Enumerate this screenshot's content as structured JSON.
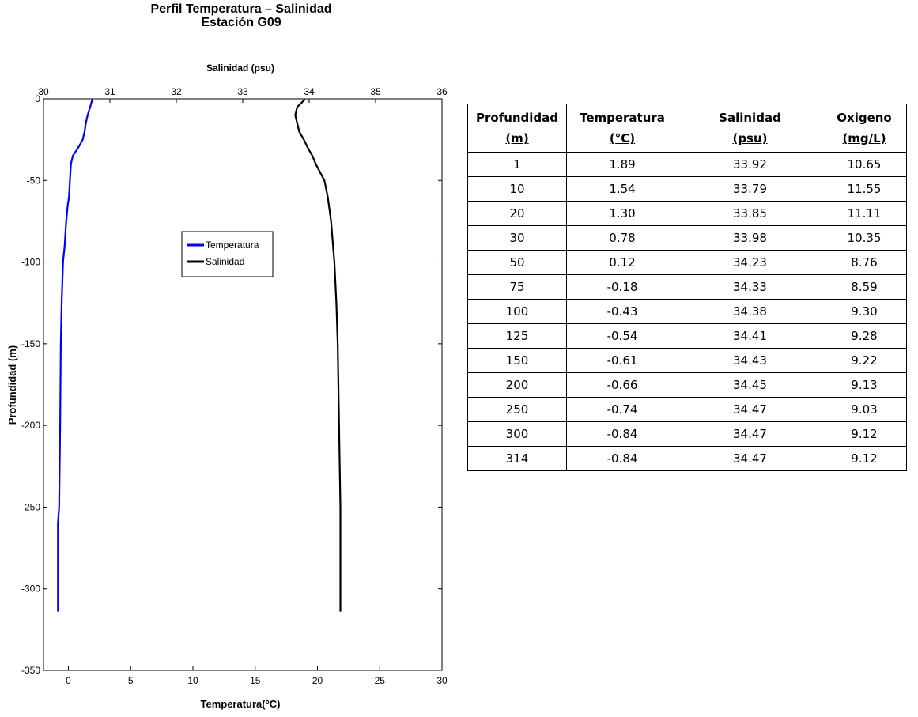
{
  "chart_data": {
    "type": "line",
    "title": [
      "Perfil Temperatura – Salinidad",
      "Estación G09"
    ],
    "ylabel": "Profundidad (m)",
    "xlabel_bottom": "Temperatura(°C)",
    "xlabel_top": "Salinidad (psu)",
    "ylim": [
      -350,
      0
    ],
    "xlim_bottom": [
      -2,
      30
    ],
    "xlim_top": [
      30,
      36
    ],
    "yticks": [
      0,
      -50,
      -100,
      -150,
      -200,
      -250,
      -300,
      -350
    ],
    "xticks_bottom": [
      0,
      5,
      10,
      15,
      20,
      25,
      30
    ],
    "xticks_top": [
      30,
      31,
      32,
      33,
      34,
      35,
      36
    ],
    "legend": {
      "position": "center-left",
      "entries": [
        "Temperatura",
        "Salinidad"
      ]
    },
    "grid": false,
    "series": [
      {
        "name": "Temperatura",
        "axis": "bottom",
        "color": "#0000ff",
        "points": [
          [
            1.95,
            0
          ],
          [
            1.89,
            -1
          ],
          [
            1.75,
            -5
          ],
          [
            1.54,
            -10
          ],
          [
            1.4,
            -15
          ],
          [
            1.3,
            -20
          ],
          [
            1.15,
            -25
          ],
          [
            0.78,
            -30
          ],
          [
            0.35,
            -35
          ],
          [
            0.2,
            -40
          ],
          [
            0.12,
            -50
          ],
          [
            0.05,
            -60
          ],
          [
            -0.05,
            -65
          ],
          [
            -0.18,
            -75
          ],
          [
            -0.3,
            -90
          ],
          [
            -0.43,
            -100
          ],
          [
            -0.54,
            -125
          ],
          [
            -0.61,
            -150
          ],
          [
            -0.66,
            -200
          ],
          [
            -0.74,
            -250
          ],
          [
            -0.84,
            -260
          ],
          [
            -0.84,
            -300
          ],
          [
            -0.84,
            -314
          ]
        ]
      },
      {
        "name": "Salinidad",
        "axis": "top",
        "color": "#000000",
        "points": [
          [
            33.93,
            0
          ],
          [
            33.92,
            -1
          ],
          [
            33.82,
            -5
          ],
          [
            33.79,
            -10
          ],
          [
            33.82,
            -15
          ],
          [
            33.85,
            -20
          ],
          [
            33.92,
            -25
          ],
          [
            33.98,
            -30
          ],
          [
            34.05,
            -35
          ],
          [
            34.1,
            -40
          ],
          [
            34.23,
            -50
          ],
          [
            34.28,
            -60
          ],
          [
            34.33,
            -75
          ],
          [
            34.36,
            -90
          ],
          [
            34.38,
            -100
          ],
          [
            34.41,
            -125
          ],
          [
            34.43,
            -150
          ],
          [
            34.45,
            -200
          ],
          [
            34.47,
            -250
          ],
          [
            34.47,
            -300
          ],
          [
            34.47,
            -314
          ]
        ]
      }
    ]
  },
  "table": {
    "headers": [
      {
        "name": "Profundidad",
        "unit": "(m)"
      },
      {
        "name": "Temperatura",
        "unit": "(°C)"
      },
      {
        "name": "Salinidad",
        "unit": "(psu)"
      },
      {
        "name": "Oxigeno",
        "unit": "(mg/L)"
      }
    ],
    "rows": [
      [
        "1",
        "1.89",
        "33.92",
        "10.65"
      ],
      [
        "10",
        "1.54",
        "33.79",
        "11.55"
      ],
      [
        "20",
        "1.30",
        "33.85",
        "11.11"
      ],
      [
        "30",
        "0.78",
        "33.98",
        "10.35"
      ],
      [
        "50",
        "0.12",
        "34.23",
        "8.76"
      ],
      [
        "75",
        "-0.18",
        "34.33",
        "8.59"
      ],
      [
        "100",
        "-0.43",
        "34.38",
        "9.30"
      ],
      [
        "125",
        "-0.54",
        "34.41",
        "9.28"
      ],
      [
        "150",
        "-0.61",
        "34.43",
        "9.22"
      ],
      [
        "200",
        "-0.66",
        "34.45",
        "9.13"
      ],
      [
        "250",
        "-0.74",
        "34.47",
        "9.03"
      ],
      [
        "300",
        "-0.84",
        "34.47",
        "9.12"
      ],
      [
        "314",
        "-0.84",
        "34.47",
        "9.12"
      ]
    ]
  }
}
